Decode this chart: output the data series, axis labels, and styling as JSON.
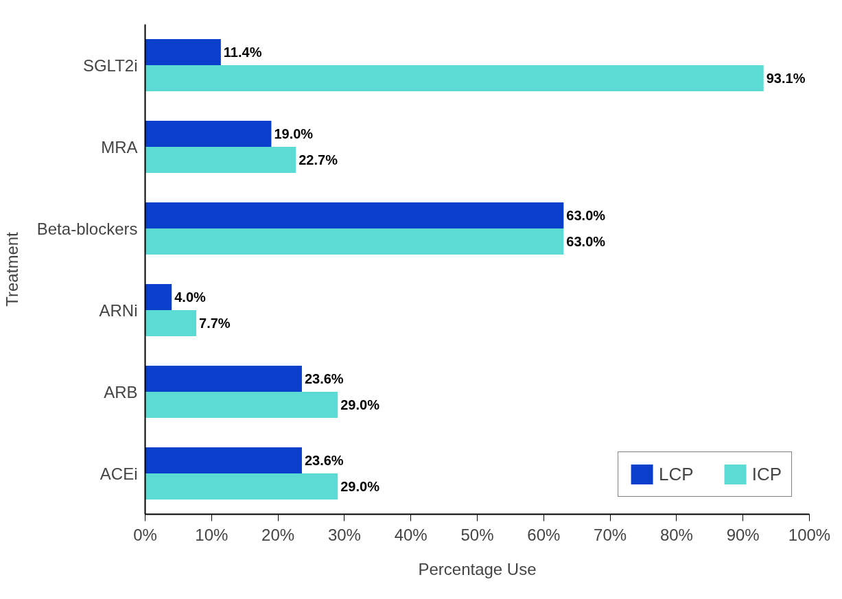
{
  "chart_data": {
    "type": "bar",
    "orientation": "horizontal",
    "xlabel": "Percentage Use",
    "ylabel": "Treatment",
    "categories": [
      "SGLT2i",
      "MRA",
      "Beta-blockers",
      "ARNi",
      "ARB",
      "ACEi"
    ],
    "series": [
      {
        "name": "LCP",
        "color": "#0a3fcb",
        "values": [
          11.4,
          19.0,
          63.0,
          4.0,
          23.6,
          23.6
        ],
        "value_labels": [
          "11.4%",
          "19.0%",
          "63.0%",
          "4.0%",
          "23.6%",
          "23.6%"
        ]
      },
      {
        "name": "ICP",
        "color": "#5bdbd4",
        "values": [
          93.1,
          22.7,
          63.0,
          7.7,
          29.0,
          29.0
        ],
        "value_labels": [
          "93.1%",
          "22.7%",
          "63.0%",
          "7.7%",
          "29.0%",
          "29.0%"
        ]
      }
    ],
    "xlim": [
      0,
      100
    ],
    "xticks": [
      {
        "value": 0,
        "label": "0%"
      },
      {
        "value": 10,
        "label": "10%"
      },
      {
        "value": 20,
        "label": "20%"
      },
      {
        "value": 30,
        "label": "30%"
      },
      {
        "value": 40,
        "label": "40%"
      },
      {
        "value": 50,
        "label": "50%"
      },
      {
        "value": 60,
        "label": "60%"
      },
      {
        "value": 70,
        "label": "70%"
      },
      {
        "value": 80,
        "label": "80%"
      },
      {
        "value": 90,
        "label": "90%"
      },
      {
        "value": 100,
        "label": "100%"
      }
    ],
    "grid": false,
    "legend": "bottom right"
  }
}
